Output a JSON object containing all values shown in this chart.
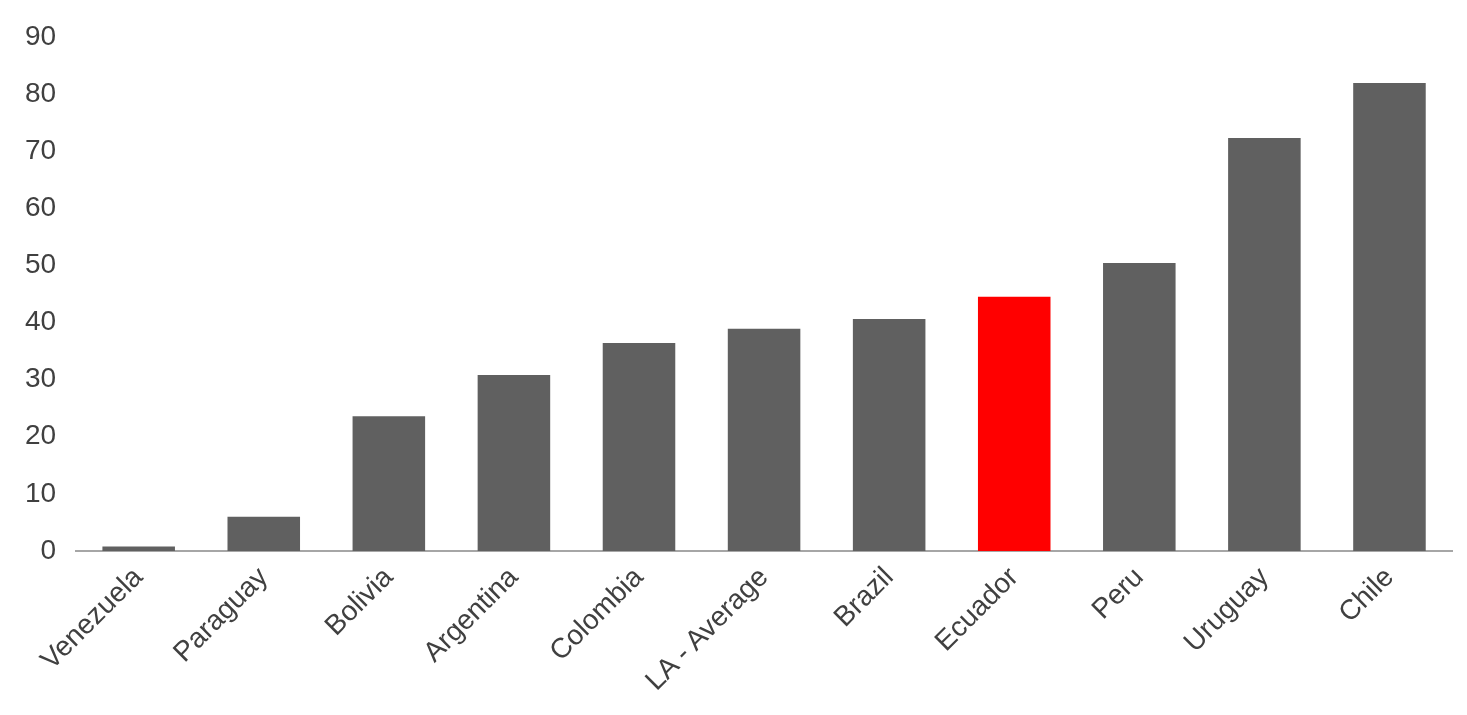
{
  "chart_data": {
    "type": "bar",
    "categories": [
      "Venezuela",
      "Paraguay",
      "Bolivia",
      "Argentina",
      "Colombia",
      "LA - Average",
      "Brazil",
      "Ecuador",
      "Peru",
      "Uruguay",
      "Chile"
    ],
    "values": [
      0.8,
      6,
      23.6,
      30.8,
      36.4,
      38.9,
      40.6,
      44.5,
      50.4,
      72.3,
      81.9
    ],
    "colors": [
      "#606060",
      "#606060",
      "#606060",
      "#606060",
      "#606060",
      "#606060",
      "#606060",
      "#ff0000",
      "#606060",
      "#606060",
      "#606060"
    ],
    "ylim": [
      0,
      90
    ],
    "yticks": [
      0,
      10,
      20,
      30,
      40,
      50,
      60,
      70,
      80,
      90
    ],
    "grid": false,
    "legend": false
  }
}
